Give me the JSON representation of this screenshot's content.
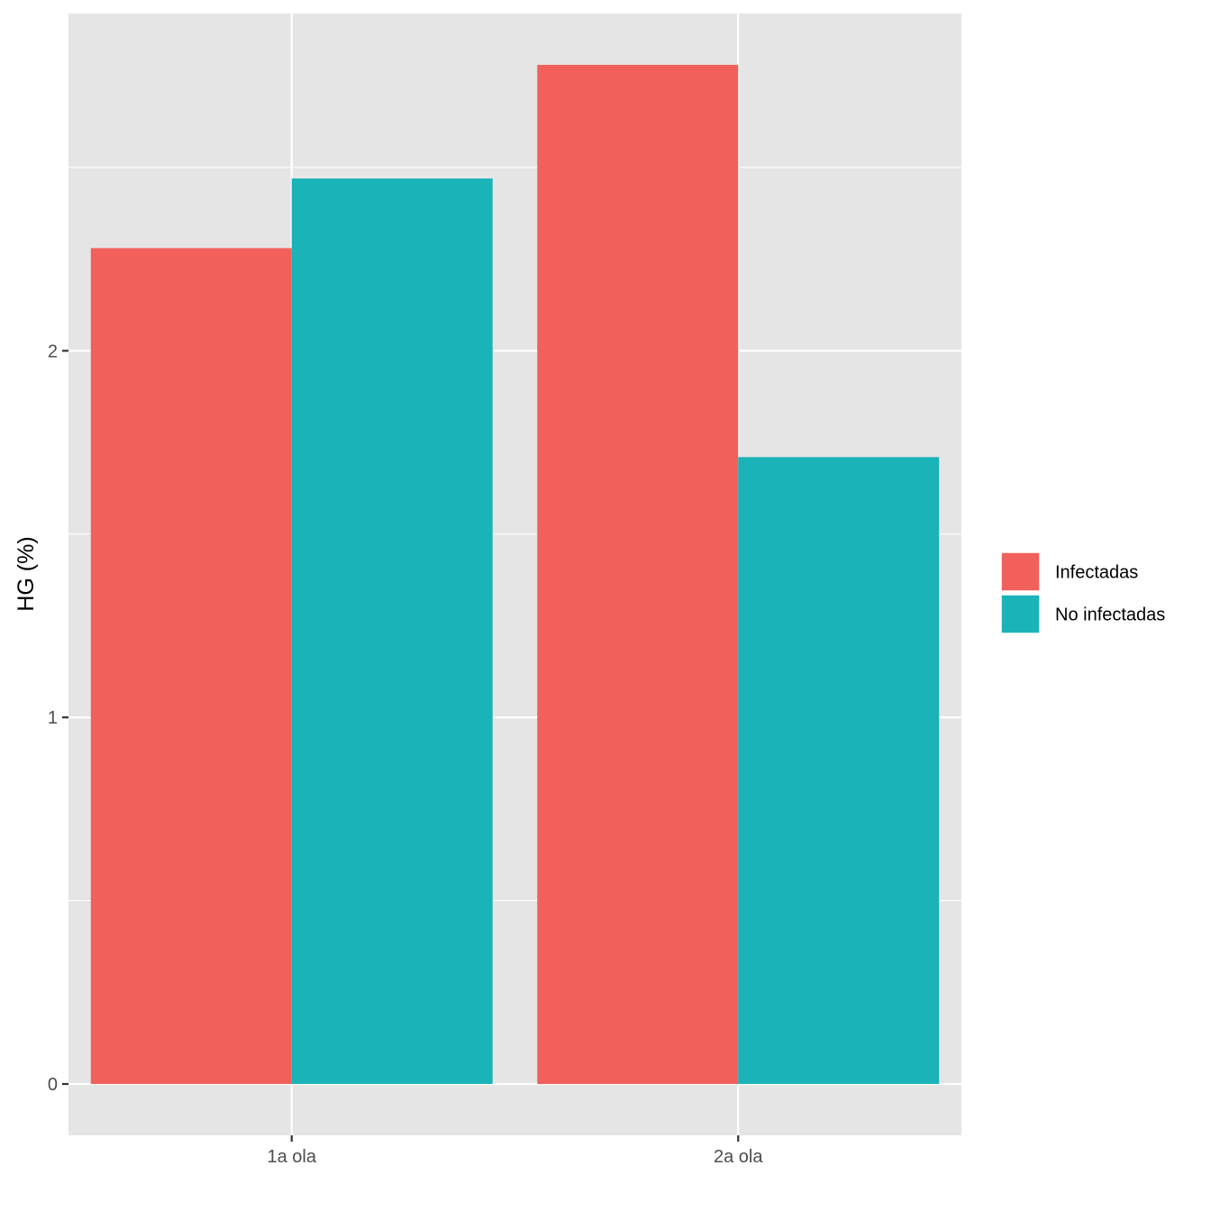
{
  "chart_data": {
    "type": "bar",
    "categories": [
      "1a ola",
      "2a ola"
    ],
    "series": [
      {
        "name": "Infectadas",
        "values": [
          2.28,
          2.78
        ],
        "color": "#F2605B"
      },
      {
        "name": "No infectadas",
        "values": [
          2.47,
          1.71
        ],
        "color": "#1AB3B8"
      }
    ],
    "title": "",
    "xlabel": "",
    "ylabel": "HG (%)",
    "ylim": [
      -0.14,
      2.92
    ],
    "yticks": [
      0,
      1,
      2
    ],
    "grid": true,
    "panel_background": "#E5E5E5",
    "grid_color": "#FFFFFF",
    "legend_position": "right"
  }
}
